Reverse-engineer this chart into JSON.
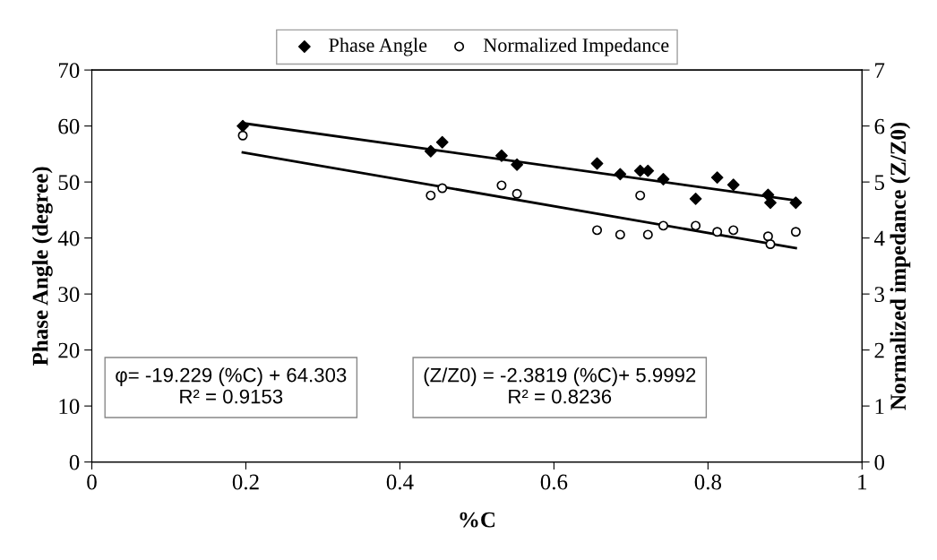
{
  "chart_data": {
    "type": "scatter",
    "xlabel": "%C",
    "ylabel": "Phase Angle (degree)",
    "y2label": "Normalized impedance (Z/Z0)",
    "xlim": [
      0,
      1
    ],
    "xticks": [
      0,
      0.2,
      0.4,
      0.6,
      0.8,
      1
    ],
    "ylim": [
      0,
      70
    ],
    "yticks": [
      0,
      10,
      20,
      30,
      40,
      50,
      60,
      70
    ],
    "y2lim": [
      0,
      7
    ],
    "y2ticks": [
      0,
      1,
      2,
      3,
      4,
      5,
      6,
      7
    ],
    "grid": false,
    "legend": "top",
    "series": [
      {
        "name": "Phase Angle",
        "color": "#000000",
        "marker": "diamond",
        "x": [
          0.196,
          0.44,
          0.455,
          0.532,
          0.552,
          0.656,
          0.686,
          0.712,
          0.722,
          0.742,
          0.784,
          0.812,
          0.833,
          0.878,
          0.881,
          0.914
        ],
        "values": [
          60.0,
          55.5,
          57.1,
          54.7,
          53.1,
          53.3,
          51.4,
          52.0,
          52.0,
          50.5,
          47.0,
          50.8,
          49.5,
          47.7,
          46.3,
          46.3
        ]
      },
      {
        "name": "Normalized Impedance",
        "color": "#000000",
        "marker": "circle",
        "axis": "y2",
        "x": [
          0.196,
          0.44,
          0.455,
          0.532,
          0.552,
          0.656,
          0.686,
          0.712,
          0.722,
          0.742,
          0.784,
          0.812,
          0.833,
          0.878,
          0.881,
          0.914
        ],
        "values": [
          5.83,
          4.76,
          4.89,
          4.94,
          4.79,
          4.14,
          4.06,
          4.76,
          4.06,
          4.22,
          4.22,
          4.11,
          4.14,
          4.03,
          3.89,
          4.11
        ]
      },
      {
        "type": "line",
        "color": "#000000",
        "x": [
          0.196,
          0.914
        ],
        "values": [
          60.5,
          46.7
        ]
      },
      {
        "type": "line",
        "color": "#000000",
        "axis": "y2",
        "x": [
          0.196,
          0.914
        ],
        "values": [
          5.53,
          3.82
        ]
      }
    ],
    "annotations": [
      "φ= -19.229 (%C) + 64.303\nR² = 0.9153",
      "(Z/Z0) = -2.3819 (%C)+ 5.9992\nR² = 0.8236"
    ]
  }
}
